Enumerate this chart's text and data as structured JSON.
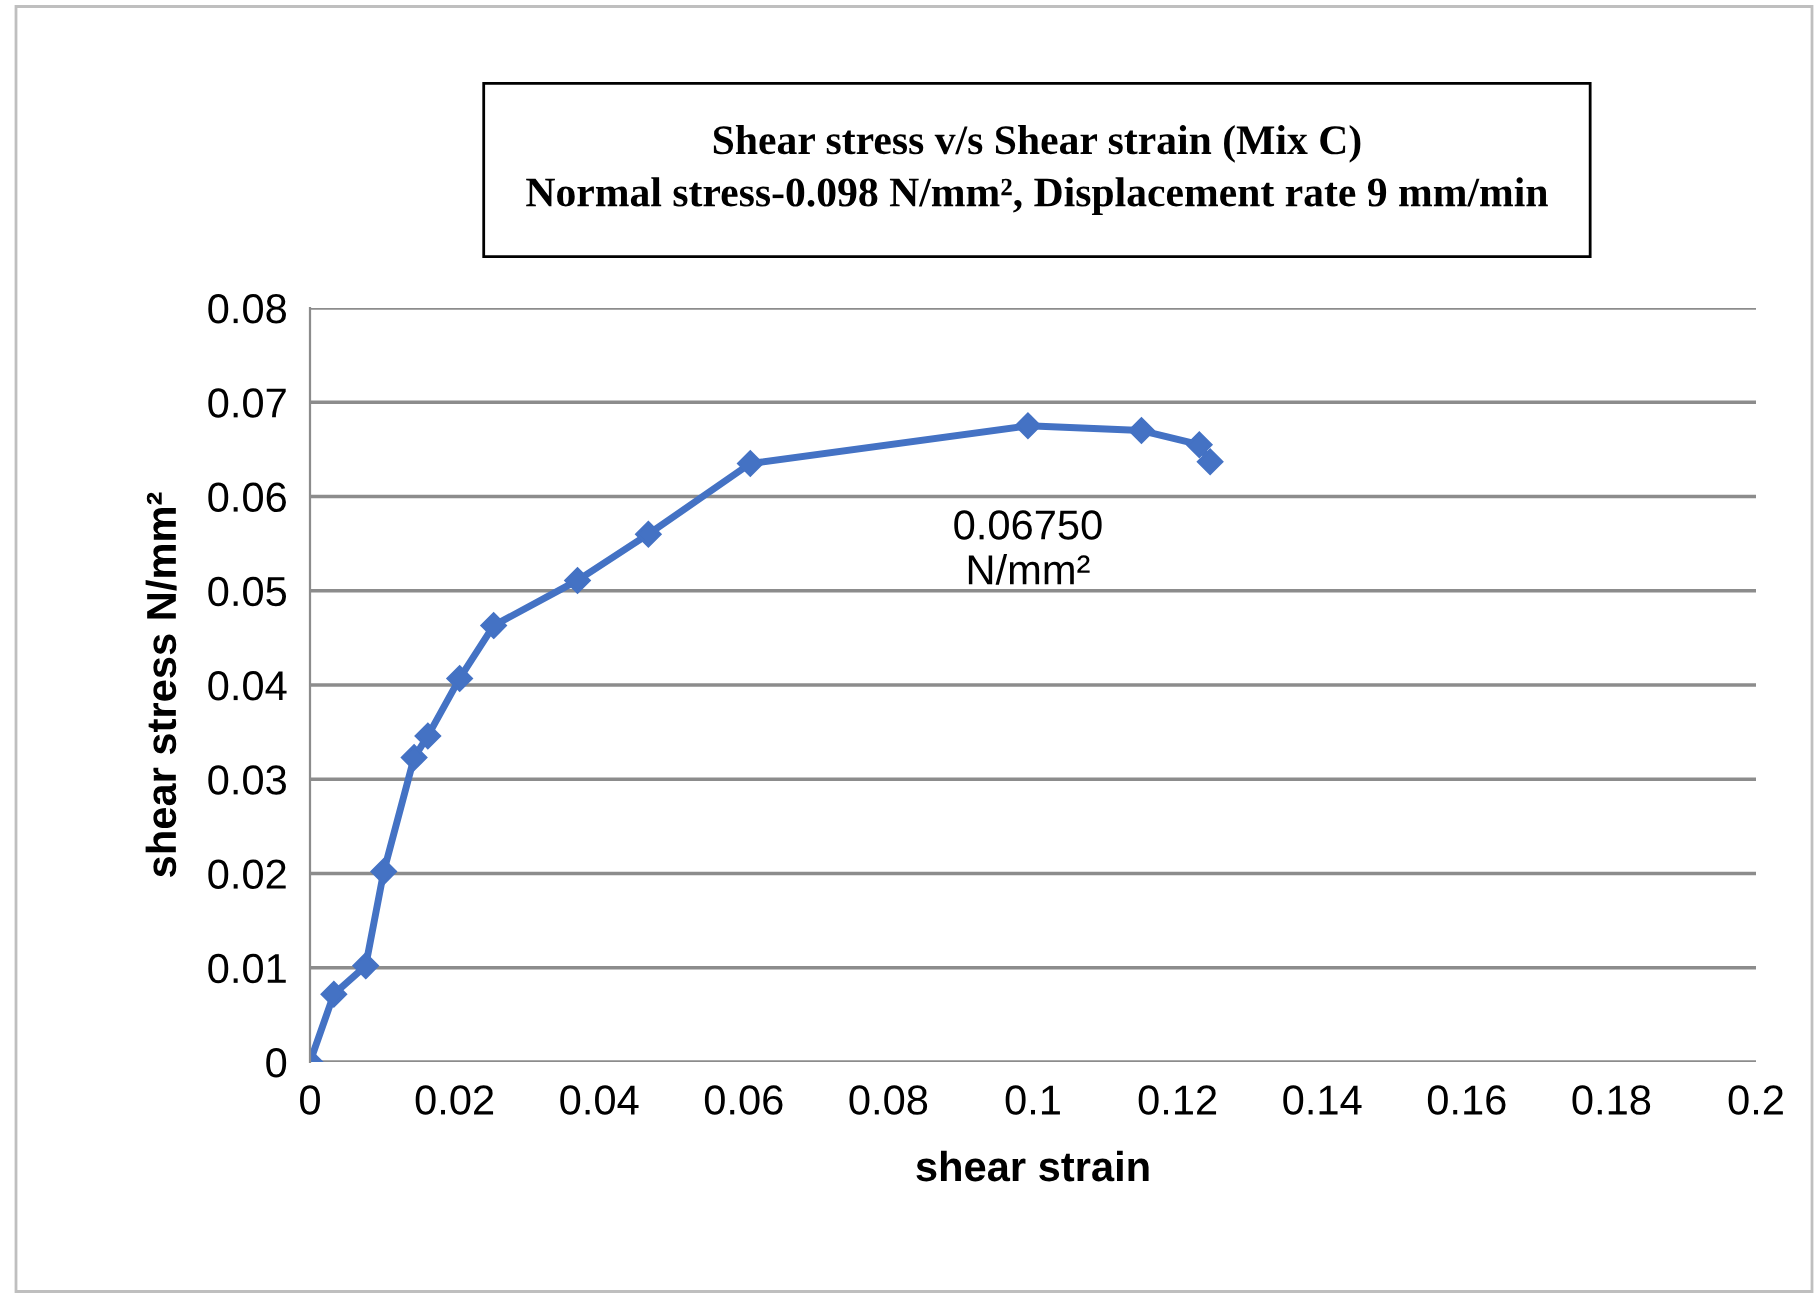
{
  "chart_data": {
    "type": "line",
    "title": "Shear stress v/s Shear strain (Mix C)\nNormal stress-0.098 N/mm², Displacement rate 9 mm/min",
    "xlabel": "shear strain",
    "ylabel": "shear stress N/mm²",
    "series": [
      {
        "color": "#4472c4",
        "x": [
          0,
          0.0033,
          0.0077,
          0.0102,
          0.0144,
          0.0163,
          0.0207,
          0.0254,
          0.037,
          0.0468,
          0.0609,
          0.0993,
          0.115,
          0.123,
          0.1245
        ],
        "values": [
          0,
          0.0072,
          0.0102,
          0.0202,
          0.0323,
          0.0346,
          0.0407,
          0.0463,
          0.0511,
          0.056,
          0.0635,
          0.0675,
          0.067,
          0.0655,
          0.0637
        ]
      }
    ],
    "annotations": [
      {
        "text": "0.06750\nN/mm²",
        "x": 0.0993,
        "y": 0.0675
      }
    ],
    "xlim": [
      0,
      0.2
    ],
    "xticks": [
      0,
      0.02,
      0.04,
      0.06,
      0.08,
      0.1,
      0.12,
      0.14,
      0.16,
      0.18,
      0.2
    ],
    "ylim": [
      0,
      0.08
    ],
    "yticks": [
      0,
      0.01,
      0.02,
      0.03,
      0.04,
      0.05,
      0.06,
      0.07,
      0.08
    ],
    "grid": "y",
    "legend": false,
    "marker": "diamond",
    "line_style": "solid"
  }
}
